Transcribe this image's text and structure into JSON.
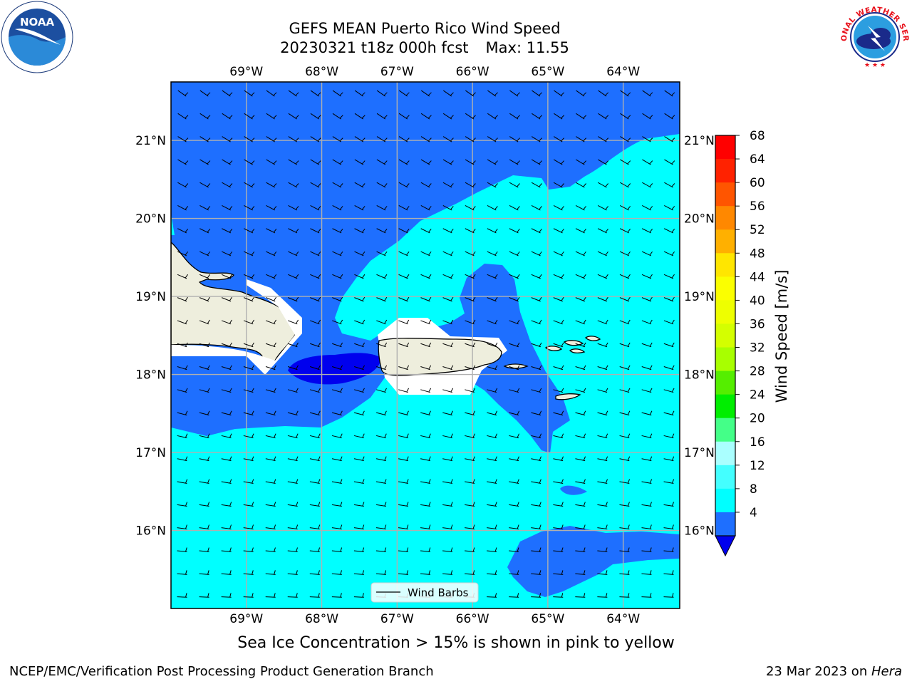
{
  "title": {
    "line1": "GEFS MEAN Puerto Rico Wind Speed",
    "line2_run": "20230321 t18z 000h fcst",
    "line2_max": "Max: 11.55"
  },
  "map": {
    "lon_ticks": [
      "69°W",
      "68°W",
      "67°W",
      "66°W",
      "65°W",
      "64°W"
    ],
    "lon_values": [
      -69,
      -68,
      -67,
      -66,
      -65,
      -64
    ],
    "lat_ticks": [
      "21°N",
      "20°N",
      "19°N",
      "18°N",
      "17°N",
      "16°N"
    ],
    "lat_values": [
      21,
      20,
      19,
      18,
      17,
      16
    ],
    "lon_range": [
      -70.0,
      -63.25
    ],
    "lat_range": [
      15.0,
      21.75
    ],
    "grid": true,
    "legend_label": "Wind Barbs",
    "legend_placement": "bottom-center",
    "colors": {
      "speed_4_8": "#1e6fff",
      "speed_8_12": "#00ffff",
      "speed_0_4": "#0000ee",
      "land": "#eeeedd",
      "grid": "#b0b0b0"
    }
  },
  "colorbar": {
    "label": "Wind Speed [m/s]",
    "levels": [
      "68",
      "64",
      "60",
      "56",
      "52",
      "48",
      "44",
      "40",
      "36",
      "32",
      "28",
      "24",
      "20",
      "16",
      "12",
      "8",
      "4"
    ],
    "colors": [
      "#ff0000",
      "#ff2200",
      "#ff5500",
      "#ff8800",
      "#ffb000",
      "#ffe600",
      "#fbff00",
      "#eeff00",
      "#d4ff00",
      "#a8ff00",
      "#55ee00",
      "#00ee00",
      "#44ff88",
      "#aaffff",
      "#44ffff",
      "#00ffff",
      "#1e6fff"
    ],
    "extend_color": "#0000ee"
  },
  "notes": {
    "sea_ice": "Sea Ice Concentration > 15% is shown in pink to yellow",
    "footer_left": "NCEP/EMC/Verification Post Processing Product Generation Branch",
    "footer_date": "23 Mar 2023 on ",
    "footer_host": "Hera"
  },
  "logos": {
    "noaa_text": "NOAA",
    "nws_text": "NATIONAL WEATHER SERVICE"
  }
}
